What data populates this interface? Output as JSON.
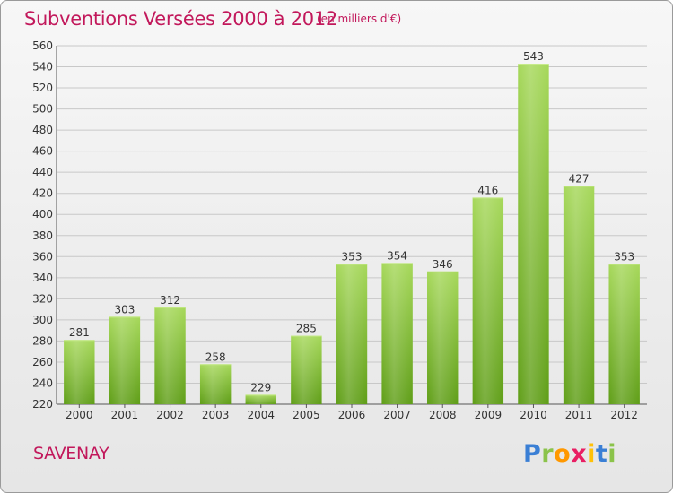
{
  "title": "Subventions Versées 2000 à 2012",
  "subtitle": "(en milliers d'€)",
  "city": "SAVENAY",
  "logo": {
    "letters": [
      "P",
      "r",
      "o",
      "x",
      "i",
      "t",
      "i"
    ],
    "colors": [
      "#3a7fd5",
      "#8bc34a",
      "#ff9800",
      "#e91e63",
      "#ffc107",
      "#3a7fd5",
      "#8bc34a"
    ]
  },
  "colors": {
    "title": "#c2185b",
    "bar_top": "#a6d85a",
    "bar_bottom": "#5f9e17",
    "grid": "#c8c8c8"
  },
  "chart_data": {
    "type": "bar",
    "title": "Subventions Versées 2000 à 2012",
    "subtitle": "(en milliers d'€)",
    "categories": [
      "2000",
      "2001",
      "2002",
      "2003",
      "2004",
      "2005",
      "2006",
      "2007",
      "2008",
      "2009",
      "2010",
      "2011",
      "2012"
    ],
    "values": [
      281,
      303,
      312,
      258,
      229,
      285,
      353,
      354,
      346,
      416,
      543,
      427,
      353
    ],
    "ylim": [
      220,
      560
    ],
    "yticks": [
      220,
      240,
      260,
      280,
      300,
      320,
      340,
      360,
      380,
      400,
      420,
      440,
      460,
      480,
      500,
      520,
      540,
      560
    ],
    "grid": true,
    "data_labels": true
  }
}
